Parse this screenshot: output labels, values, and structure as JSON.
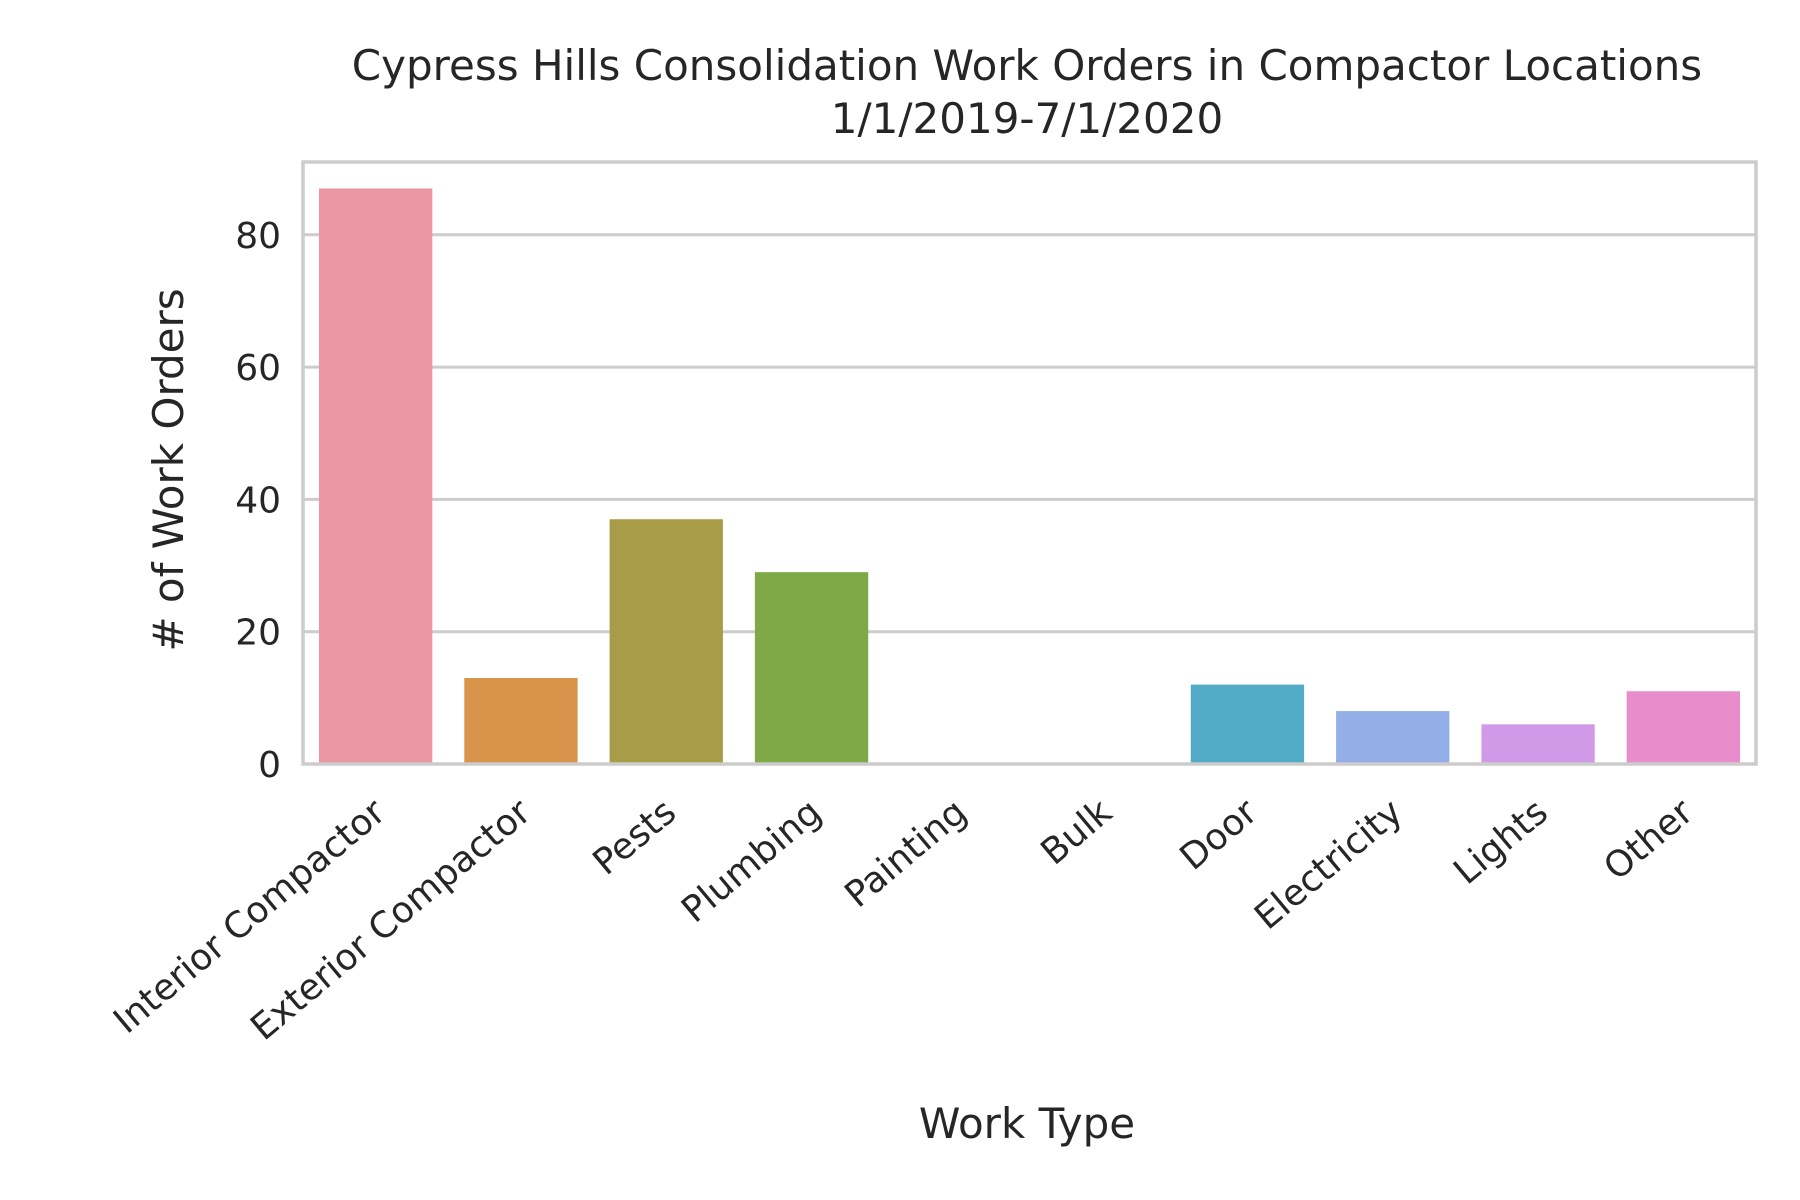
{
  "chart_data": {
    "type": "bar",
    "title": "Cypress Hills Consolidation Work Orders in Compactor Locations",
    "subtitle": "1/1/2019-7/1/2020",
    "xlabel": "Work Type",
    "ylabel": "# of Work Orders",
    "categories": [
      "Interior Compactor",
      "Exterior Compactor",
      "Pests",
      "Plumbing",
      "Painting",
      "Bulk",
      "Door",
      "Electricity",
      "Lights",
      "Other"
    ],
    "values": [
      87,
      13,
      37,
      29,
      0,
      0,
      12,
      8,
      6,
      11
    ],
    "colors": [
      "#ea96a3",
      "#d9944c",
      "#a99c48",
      "#7fa946",
      "#57ad81",
      "#59aa9f",
      "#52abc6",
      "#94aee8",
      "#d09ae8",
      "#e88ccc"
    ],
    "ylim": [
      0,
      91
    ],
    "yticks": [
      0,
      20,
      40,
      60,
      80
    ],
    "grid": true,
    "legend": "none"
  }
}
